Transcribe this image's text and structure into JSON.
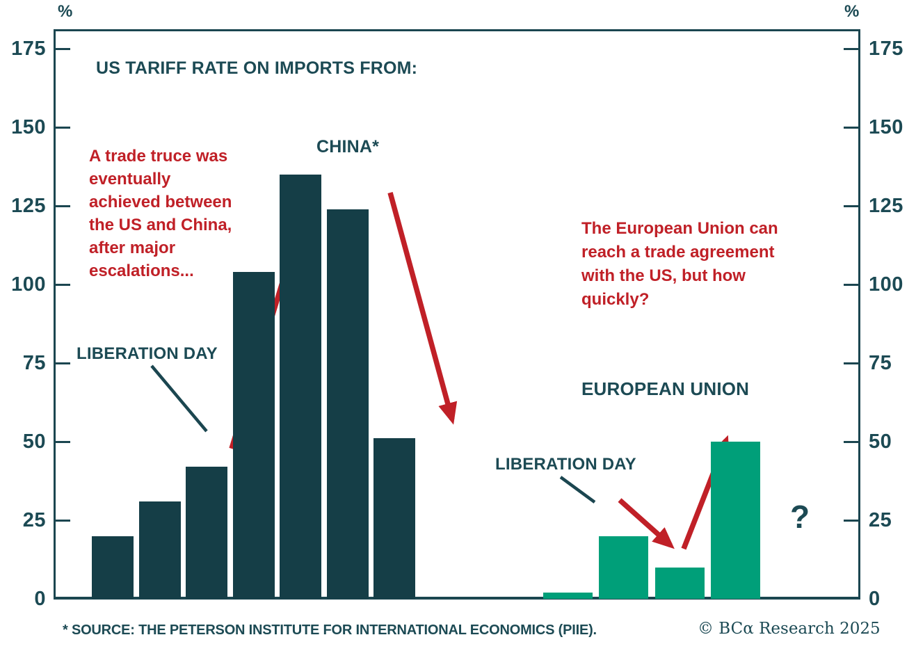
{
  "chart_data": {
    "type": "bar",
    "title": "US TARIFF RATE ON IMPORTS FROM:",
    "unit": "%",
    "xlabel": "",
    "ylabel": "%",
    "ylim": [
      0,
      175
    ],
    "yticks": [
      0,
      25,
      50,
      75,
      100,
      125,
      150,
      175
    ],
    "grid": false,
    "legend_position": "none",
    "series": [
      {
        "name": "CHINA*",
        "color": "#153e47",
        "values": [
          20,
          31,
          42,
          104,
          135,
          124,
          51
        ]
      },
      {
        "name": "EUROPEAN UNION",
        "color": "#009f79",
        "values": [
          2,
          20,
          10,
          50
        ]
      }
    ]
  },
  "labels": {
    "liberation_day_china": "LIBERATION DAY",
    "liberation_day_eu": "LIBERATION DAY",
    "question_mark": "?"
  },
  "annotations": {
    "china_note_lines": [
      "A trade truce was",
      "eventually",
      "achieved between",
      "the US and China,",
      "after major",
      "escalations..."
    ],
    "eu_note_lines": [
      "The European Union can",
      "reach a trade agreement",
      "with the US, but how",
      "quickly?"
    ]
  },
  "footer": {
    "source": "* SOURCE: THE PETERSON INSTITUTE FOR INTERNATIONAL ECONOMICS (PIIE).",
    "brand": "© BCα Research 2025"
  },
  "colors": {
    "dark_teal_bar": "#153e47",
    "teal_text": "#1c4a54",
    "axis_teal": "#1b4650",
    "green_bar": "#009f79",
    "red_annotation": "#c02027",
    "background": "#ffffff"
  }
}
